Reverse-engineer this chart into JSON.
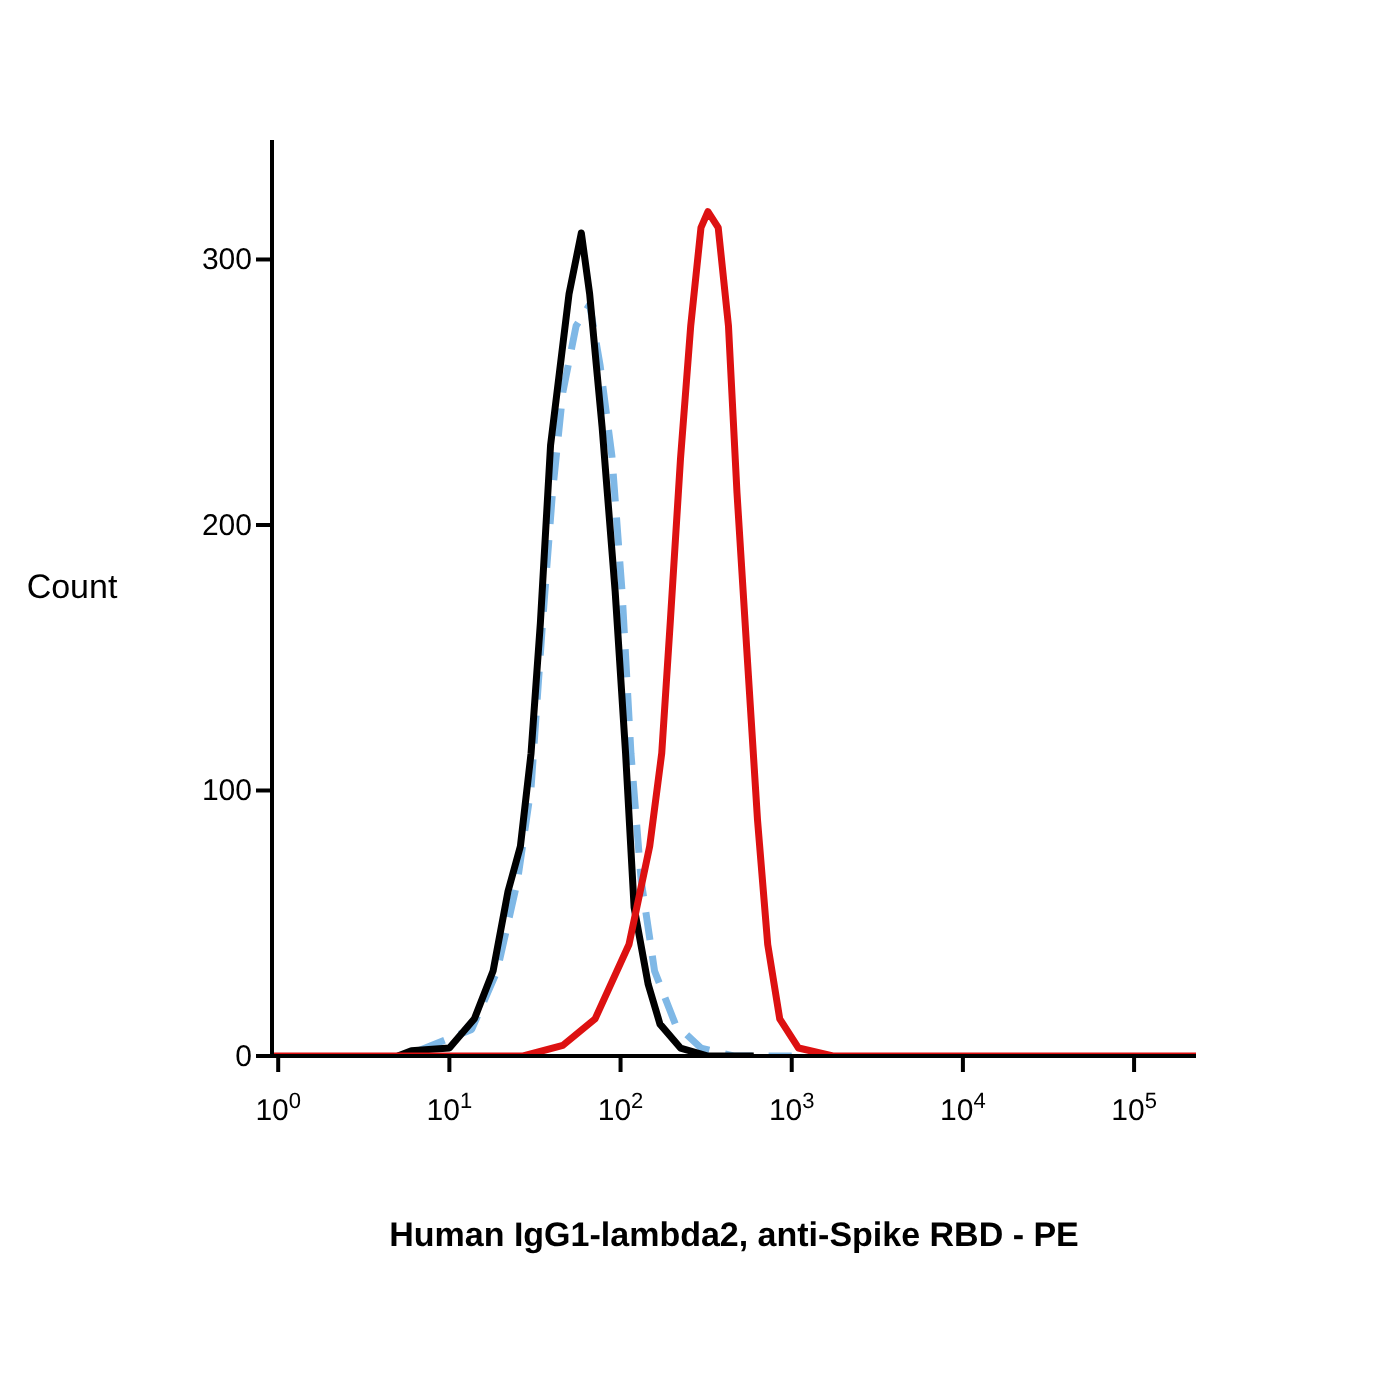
{
  "chart_data": {
    "type": "line",
    "xlabel": "Human IgG1-lambda2, anti-Spike RBD - PE",
    "ylabel": "Count",
    "log": "x",
    "grid": false,
    "legend": false,
    "marker": "none",
    "xlim": [
      0.92,
      230000
    ],
    "ylim": [
      0,
      345
    ],
    "xticks": [
      {
        "value": 1,
        "label": "10$^{0}$"
      },
      {
        "value": 10,
        "label": "10$^{1}$"
      },
      {
        "value": 100,
        "label": "10$^{2}$"
      },
      {
        "value": 1000,
        "label": "10$^{3}$"
      },
      {
        "value": 10000,
        "label": "10$^{4}$"
      },
      {
        "value": 100000,
        "label": "10$^{5}$"
      }
    ],
    "yticks": [
      0,
      100,
      200,
      300
    ],
    "series": [
      {
        "color": "#7fb8e6",
        "line_style": "dashed",
        "x": [
          6.6,
          13.5,
          19,
          25,
          30,
          35,
          40,
          46,
          55,
          66,
          76,
          89,
          102,
          115,
          132,
          158,
          209,
          295,
          457,
          1000
        ],
        "values": [
          2,
          10,
          32,
          66,
          101,
          163,
          212,
          250,
          275,
          283,
          260,
          226,
          175,
          114,
          66,
          32,
          12,
          3,
          0,
          0
        ]
      },
      {
        "color": "#000000",
        "line_style": "solid",
        "x": [
          5,
          6,
          10,
          14,
          18,
          22,
          26,
          30,
          34,
          39,
          50,
          59,
          66,
          78,
          93,
          107,
          120,
          145,
          170,
          224,
          324,
          600
        ],
        "values": [
          0,
          2,
          3,
          14,
          32,
          62,
          79,
          114,
          163,
          230,
          287,
          310,
          287,
          237,
          175,
          114,
          56,
          27,
          12,
          3,
          0,
          0
        ]
      },
      {
        "color": "#dd1111",
        "line_style": "solid",
        "x": [
          0.92,
          27,
          46,
          71,
          112,
          148,
          174,
          195,
          224,
          257,
          295,
          324,
          372,
          427,
          479,
          550,
          631,
          724,
          851,
          1096,
          1738,
          230000
        ],
        "values": [
          0,
          0,
          4,
          14,
          42,
          79,
          114,
          163,
          225,
          275,
          312,
          318,
          312,
          275,
          212,
          150,
          89,
          42,
          14,
          3,
          0,
          0
        ]
      }
    ]
  }
}
